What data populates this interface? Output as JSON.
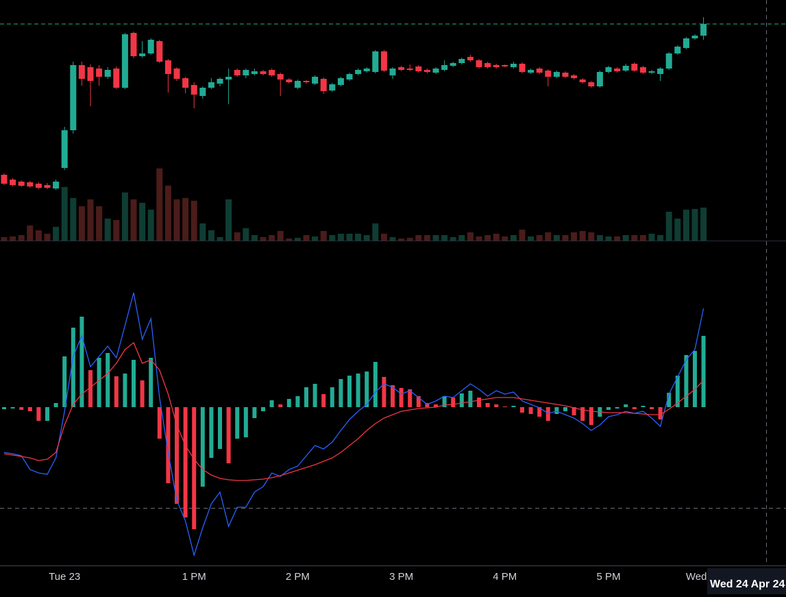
{
  "chart_data": [
    {
      "type": "candlestick",
      "categories": [
        null,
        null,
        null,
        null,
        null,
        null,
        null,
        "Tue 23",
        null,
        null,
        null,
        null,
        null,
        null,
        null,
        null,
        null,
        null,
        null,
        null,
        null,
        null,
        "1 PM",
        null,
        null,
        null,
        null,
        null,
        null,
        null,
        null,
        null,
        null,
        null,
        "2 PM",
        null,
        null,
        null,
        null,
        null,
        null,
        null,
        null,
        null,
        null,
        null,
        "3 PM",
        null,
        null,
        null,
        null,
        null,
        null,
        null,
        null,
        null,
        null,
        null,
        "4 PM",
        null,
        null,
        null,
        null,
        null,
        null,
        null,
        null,
        null,
        null,
        null,
        "5 PM",
        null,
        null,
        null,
        null,
        null,
        null,
        null,
        null,
        null,
        null,
        "Wed 24"
      ],
      "ohlc": [
        [
          101.5,
          101.7,
          100.0,
          100.2
        ],
        [
          100.8,
          101.0,
          99.8,
          100.0
        ],
        [
          100.5,
          100.7,
          99.7,
          99.9
        ],
        [
          100.4,
          100.6,
          99.6,
          99.8
        ],
        [
          100.2,
          100.4,
          99.4,
          99.6
        ],
        [
          100.0,
          100.3,
          99.4,
          99.6
        ],
        [
          99.5,
          100.8,
          99.3,
          100.5
        ],
        [
          102.5,
          108.5,
          102.2,
          108.0
        ],
        [
          108.0,
          118.0,
          107.5,
          117.5
        ],
        [
          117.5,
          118.0,
          114.5,
          115.5
        ],
        [
          117.2,
          117.6,
          111.5,
          115.2
        ],
        [
          117.0,
          117.5,
          114.5,
          115.8
        ],
        [
          115.8,
          117.2,
          115.5,
          116.8
        ],
        [
          117.0,
          117.3,
          114.0,
          114.2
        ],
        [
          114.2,
          122.2,
          114.0,
          122.0
        ],
        [
          122.2,
          122.4,
          118.5,
          118.8
        ],
        [
          118.8,
          121.0,
          118.6,
          119.2
        ],
        [
          119.2,
          121.4,
          119.0,
          121.2
        ],
        [
          121.0,
          121.2,
          117.8,
          118.0
        ],
        [
          118.2,
          118.4,
          113.5,
          116.2
        ],
        [
          117.0,
          117.2,
          115.2,
          115.5
        ],
        [
          115.6,
          115.8,
          113.4,
          114.2
        ],
        [
          114.6,
          115.0,
          111.2,
          113.2
        ],
        [
          113.0,
          114.4,
          112.6,
          114.2
        ],
        [
          114.2,
          115.6,
          114.0,
          115.0
        ],
        [
          114.8,
          115.7,
          114.4,
          115.5
        ],
        [
          115.4,
          117.0,
          111.8,
          115.8
        ],
        [
          116.8,
          117.0,
          115.8,
          116.0
        ],
        [
          116.0,
          117.0,
          115.6,
          116.8
        ],
        [
          116.2,
          117.0,
          116.0,
          116.6
        ],
        [
          116.6,
          116.8,
          116.0,
          116.2
        ],
        [
          116.8,
          117.0,
          115.8,
          116.0
        ],
        [
          116.2,
          116.4,
          113.0,
          115.4
        ],
        [
          115.4,
          115.6,
          114.8,
          115.0
        ],
        [
          114.2,
          115.4,
          114.0,
          115.2
        ],
        [
          115.2,
          115.3,
          114.8,
          115.0
        ],
        [
          114.8,
          116.0,
          114.6,
          115.8
        ],
        [
          115.5,
          115.7,
          113.3,
          113.7
        ],
        [
          113.8,
          114.9,
          113.6,
          114.7
        ],
        [
          114.6,
          115.8,
          114.4,
          115.6
        ],
        [
          115.4,
          116.4,
          115.2,
          116.2
        ],
        [
          116.2,
          117.0,
          116.0,
          116.8
        ],
        [
          116.6,
          117.2,
          116.4,
          117.0
        ],
        [
          116.5,
          119.7,
          116.3,
          119.5
        ],
        [
          119.5,
          119.7,
          116.5,
          116.7
        ],
        [
          116.0,
          117.2,
          115.5,
          117.0
        ],
        [
          117.2,
          117.4,
          116.6,
          116.8
        ],
        [
          117.0,
          117.6,
          116.6,
          116.8
        ],
        [
          117.3,
          117.5,
          116.4,
          116.6
        ],
        [
          116.8,
          117.0,
          116.3,
          116.5
        ],
        [
          116.4,
          117.2,
          116.2,
          117.0
        ],
        [
          116.8,
          118.2,
          116.6,
          117.5
        ],
        [
          117.4,
          118.0,
          117.2,
          117.8
        ],
        [
          117.8,
          118.6,
          117.6,
          118.4
        ],
        [
          118.7,
          119.0,
          118.0,
          118.2
        ],
        [
          118.2,
          118.4,
          117.0,
          117.2
        ],
        [
          117.8,
          118.0,
          117.0,
          117.2
        ],
        [
          117.5,
          117.7,
          117.0,
          117.2
        ],
        [
          117.5,
          117.6,
          117.2,
          117.3
        ],
        [
          117.2,
          118.0,
          117.0,
          117.7
        ],
        [
          117.7,
          117.9,
          116.3,
          116.5
        ],
        [
          116.4,
          117.0,
          116.2,
          116.8
        ],
        [
          117.0,
          117.2,
          116.2,
          116.4
        ],
        [
          116.7,
          116.9,
          114.4,
          115.8
        ],
        [
          115.8,
          116.7,
          115.6,
          116.5
        ],
        [
          116.4,
          116.6,
          115.6,
          115.8
        ],
        [
          116.0,
          116.2,
          115.4,
          115.6
        ],
        [
          115.4,
          115.6,
          114.8,
          115.0
        ],
        [
          115.0,
          115.2,
          114.2,
          114.4
        ],
        [
          114.4,
          116.7,
          114.2,
          116.5
        ],
        [
          116.5,
          117.4,
          116.3,
          117.2
        ],
        [
          117.0,
          117.2,
          116.4,
          116.6
        ],
        [
          116.7,
          117.7,
          116.5,
          117.4
        ],
        [
          117.7,
          117.9,
          116.5,
          116.7
        ],
        [
          117.2,
          117.4,
          116.2,
          116.4
        ],
        [
          116.4,
          116.8,
          116.2,
          116.6
        ],
        [
          116.2,
          117.2,
          115.2,
          117.0
        ],
        [
          117.0,
          119.4,
          116.8,
          119.2
        ],
        [
          119.2,
          120.4,
          119.0,
          120.2
        ],
        [
          120.0,
          121.6,
          119.8,
          121.4
        ],
        [
          121.4,
          122.0,
          121.2,
          121.8
        ],
        [
          121.8,
          124.5,
          121.2,
          123.5
        ]
      ],
      "volume": [
        5,
        6,
        8,
        22,
        15,
        10,
        20,
        78,
        62,
        50,
        60,
        50,
        32,
        30,
        70,
        60,
        55,
        45,
        105,
        80,
        60,
        62,
        58,
        25,
        15,
        5,
        60,
        12,
        18,
        8,
        5,
        8,
        14,
        3,
        4,
        8,
        6,
        14,
        8,
        10,
        10,
        10,
        8,
        25,
        10,
        5,
        3,
        4,
        8,
        8,
        8,
        8,
        5,
        8,
        12,
        6,
        8,
        10,
        6,
        8,
        16,
        6,
        8,
        12,
        8,
        8,
        12,
        14,
        12,
        8,
        6,
        6,
        8,
        8,
        8,
        10,
        8,
        42,
        32,
        45,
        46,
        48
      ],
      "up_color": "#22ab94",
      "down_color": "#f23645",
      "volume_up_color": "#0f3d33",
      "volume_down_color": "#4a1c1a",
      "ylim": [
        92,
        127
      ],
      "volume_lim": [
        0,
        350
      ]
    },
    {
      "type": "macd",
      "histogram": [
        -0.03,
        -0.02,
        -0.04,
        -0.06,
        -0.2,
        -0.2,
        0.06,
        0.74,
        1.16,
        1.32,
        0.54,
        0.72,
        0.79,
        0.45,
        0.49,
        0.69,
        0.39,
        0.72,
        -0.46,
        -1.11,
        -1.41,
        -1.61,
        -1.78,
        -1.16,
        -0.74,
        -0.61,
        -0.82,
        -0.46,
        -0.44,
        -0.16,
        -0.06,
        0.1,
        0.04,
        0.12,
        0.16,
        0.29,
        0.34,
        0.19,
        0.29,
        0.41,
        0.46,
        0.49,
        0.52,
        0.66,
        0.44,
        0.32,
        0.28,
        0.26,
        0.16,
        0.06,
        0.04,
        0.16,
        0.14,
        0.2,
        0.24,
        0.14,
        0.06,
        0.04,
        0.01,
        0.02,
        -0.08,
        -0.1,
        -0.14,
        -0.2,
        -0.1,
        -0.06,
        -0.12,
        -0.2,
        -0.26,
        -0.14,
        -0.04,
        -0.02,
        0.04,
        -0.03,
        0.02,
        -0.03,
        -0.18,
        0.21,
        0.46,
        0.76,
        0.82,
        1.04
      ],
      "series": [
        {
          "color": "#2962ff",
          "values": [
            -0.66,
            -0.68,
            -0.71,
            -0.91,
            -0.96,
            -0.98,
            -0.74,
            -0.06,
            0.74,
            1.04,
            0.59,
            0.74,
            0.89,
            0.72,
            1.19,
            1.67,
            0.99,
            1.29,
            0.14,
            -0.66,
            -1.36,
            -1.66,
            -2.16,
            -1.76,
            -1.41,
            -1.24,
            -1.74,
            -1.46,
            -1.46,
            -1.24,
            -1.16,
            -0.96,
            -1.01,
            -0.91,
            -0.86,
            -0.71,
            -0.56,
            -0.61,
            -0.51,
            -0.34,
            -0.18,
            -0.06,
            0.04,
            0.22,
            0.34,
            0.29,
            0.19,
            0.24,
            0.14,
            0.04,
            0.09,
            0.16,
            0.14,
            0.24,
            0.34,
            0.26,
            0.16,
            0.24,
            0.19,
            0.22,
            0.09,
            0.04,
            -0.01,
            -0.09,
            -0.06,
            -0.11,
            -0.16,
            -0.24,
            -0.34,
            -0.26,
            -0.14,
            -0.11,
            -0.06,
            -0.09,
            -0.06,
            -0.16,
            -0.28,
            0.19,
            0.44,
            0.69,
            0.84,
            1.44
          ]
        },
        {
          "color": "#f23645",
          "values": [
            -0.68,
            -0.7,
            -0.72,
            -0.74,
            -0.78,
            -0.76,
            -0.66,
            -0.26,
            0.04,
            0.19,
            0.29,
            0.39,
            0.49,
            0.64,
            0.84,
            0.94,
            0.64,
            0.69,
            0.54,
            0.19,
            -0.26,
            -0.56,
            -0.76,
            -0.91,
            -0.99,
            -1.04,
            -1.06,
            -1.07,
            -1.07,
            -1.06,
            -1.05,
            -1.03,
            -1.0,
            -0.96,
            -0.92,
            -0.88,
            -0.84,
            -0.79,
            -0.74,
            -0.66,
            -0.56,
            -0.46,
            -0.34,
            -0.24,
            -0.16,
            -0.11,
            -0.06,
            -0.04,
            -0.02,
            -0.01,
            0.0,
            0.03,
            0.04,
            0.06,
            0.08,
            0.1,
            0.12,
            0.14,
            0.14,
            0.14,
            0.12,
            0.1,
            0.08,
            0.06,
            0.04,
            0.02,
            -0.01,
            -0.04,
            -0.06,
            -0.07,
            -0.08,
            -0.08,
            -0.08,
            -0.09,
            -0.1,
            -0.11,
            -0.11,
            -0.03,
            0.06,
            0.16,
            0.26,
            0.39
          ]
        }
      ],
      "up_color": "#22ab94",
      "down_color": "#f23645",
      "ylim": [
        -2.31,
        2.39
      ]
    }
  ],
  "crosshair_label": "Wed 24 Apr 24"
}
